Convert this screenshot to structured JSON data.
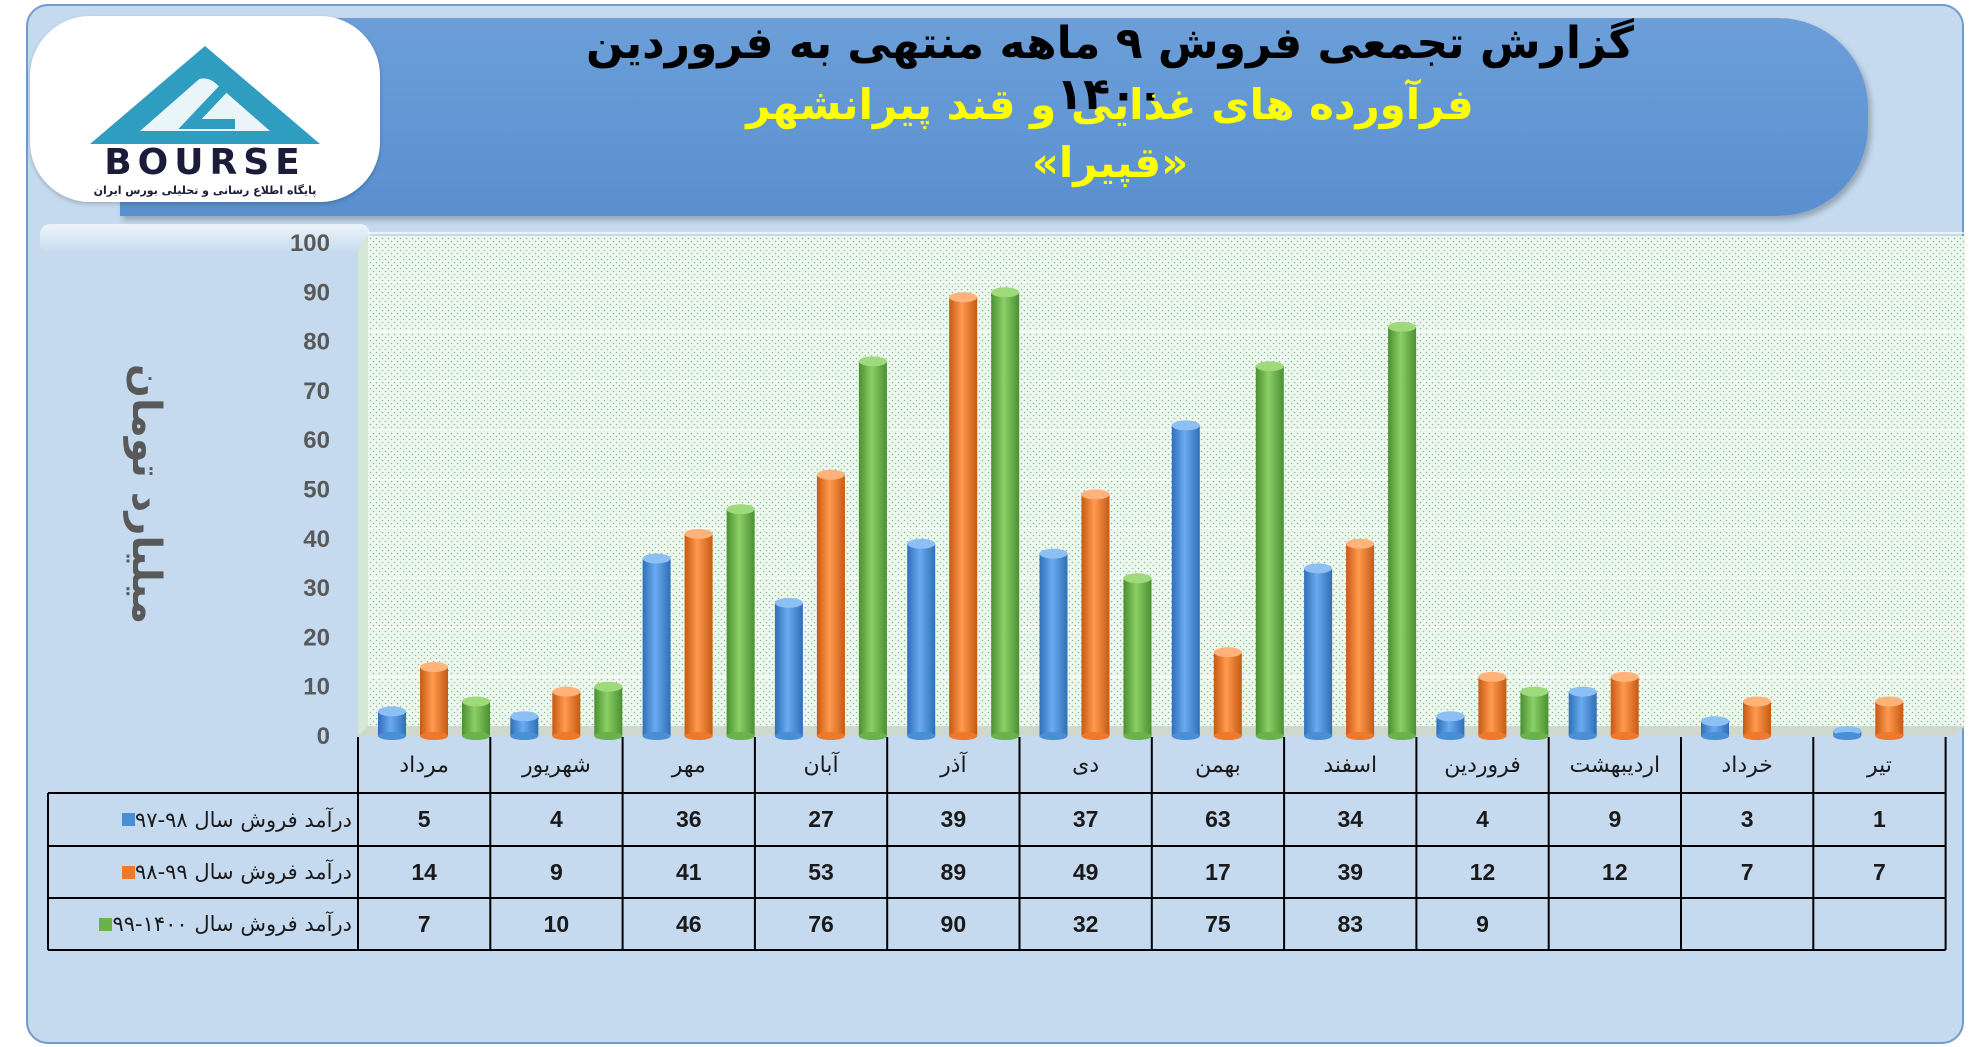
{
  "header": {
    "title_line1": "گزارش تجمعی فروش ۹ ماهه منتهی به فروردین ۱۴۰۰",
    "title_line2": "فرآورده های غذایی و قند پیرانشهر",
    "title_line3": "«قپیرا»"
  },
  "logo": {
    "brand_text": "BOURSE",
    "subtitle": "پایگاه اطلاع رسانی و تحلیلی بورس ایران",
    "colors": {
      "triangle": "#2f9dc0",
      "text": "#1b1b3a"
    }
  },
  "chart_data": {
    "type": "bar",
    "ylabel": "میلیارد تومان",
    "ylim": [
      0,
      100
    ],
    "yticks": [
      0,
      10,
      20,
      30,
      40,
      50,
      60,
      70,
      80,
      90,
      100
    ],
    "grid": true,
    "legend": "table-left",
    "categories": [
      "مرداد",
      "شهریور",
      "مهر",
      "آبان",
      "آذر",
      "دی",
      "بهمن",
      "اسفند",
      "فروردین",
      "اردیبهشت",
      "خرداد",
      "تیر"
    ],
    "series": [
      {
        "name": "درآمد فروش سال ۹۸-۹۷",
        "color": "#4a8fd6",
        "values": [
          5,
          4,
          36,
          27,
          39,
          37,
          63,
          34,
          4,
          9,
          3,
          1
        ]
      },
      {
        "name": "درآمد فروش سال ۹۹-۹۸",
        "color": "#f0782a",
        "values": [
          14,
          9,
          41,
          53,
          89,
          49,
          17,
          39,
          12,
          12,
          7,
          7
        ]
      },
      {
        "name": "درآمد فروش سال ۱۴۰۰-۹۹",
        "color": "#6ab24a",
        "values": [
          7,
          10,
          46,
          76,
          90,
          32,
          75,
          83,
          9,
          null,
          null,
          null
        ]
      }
    ]
  }
}
